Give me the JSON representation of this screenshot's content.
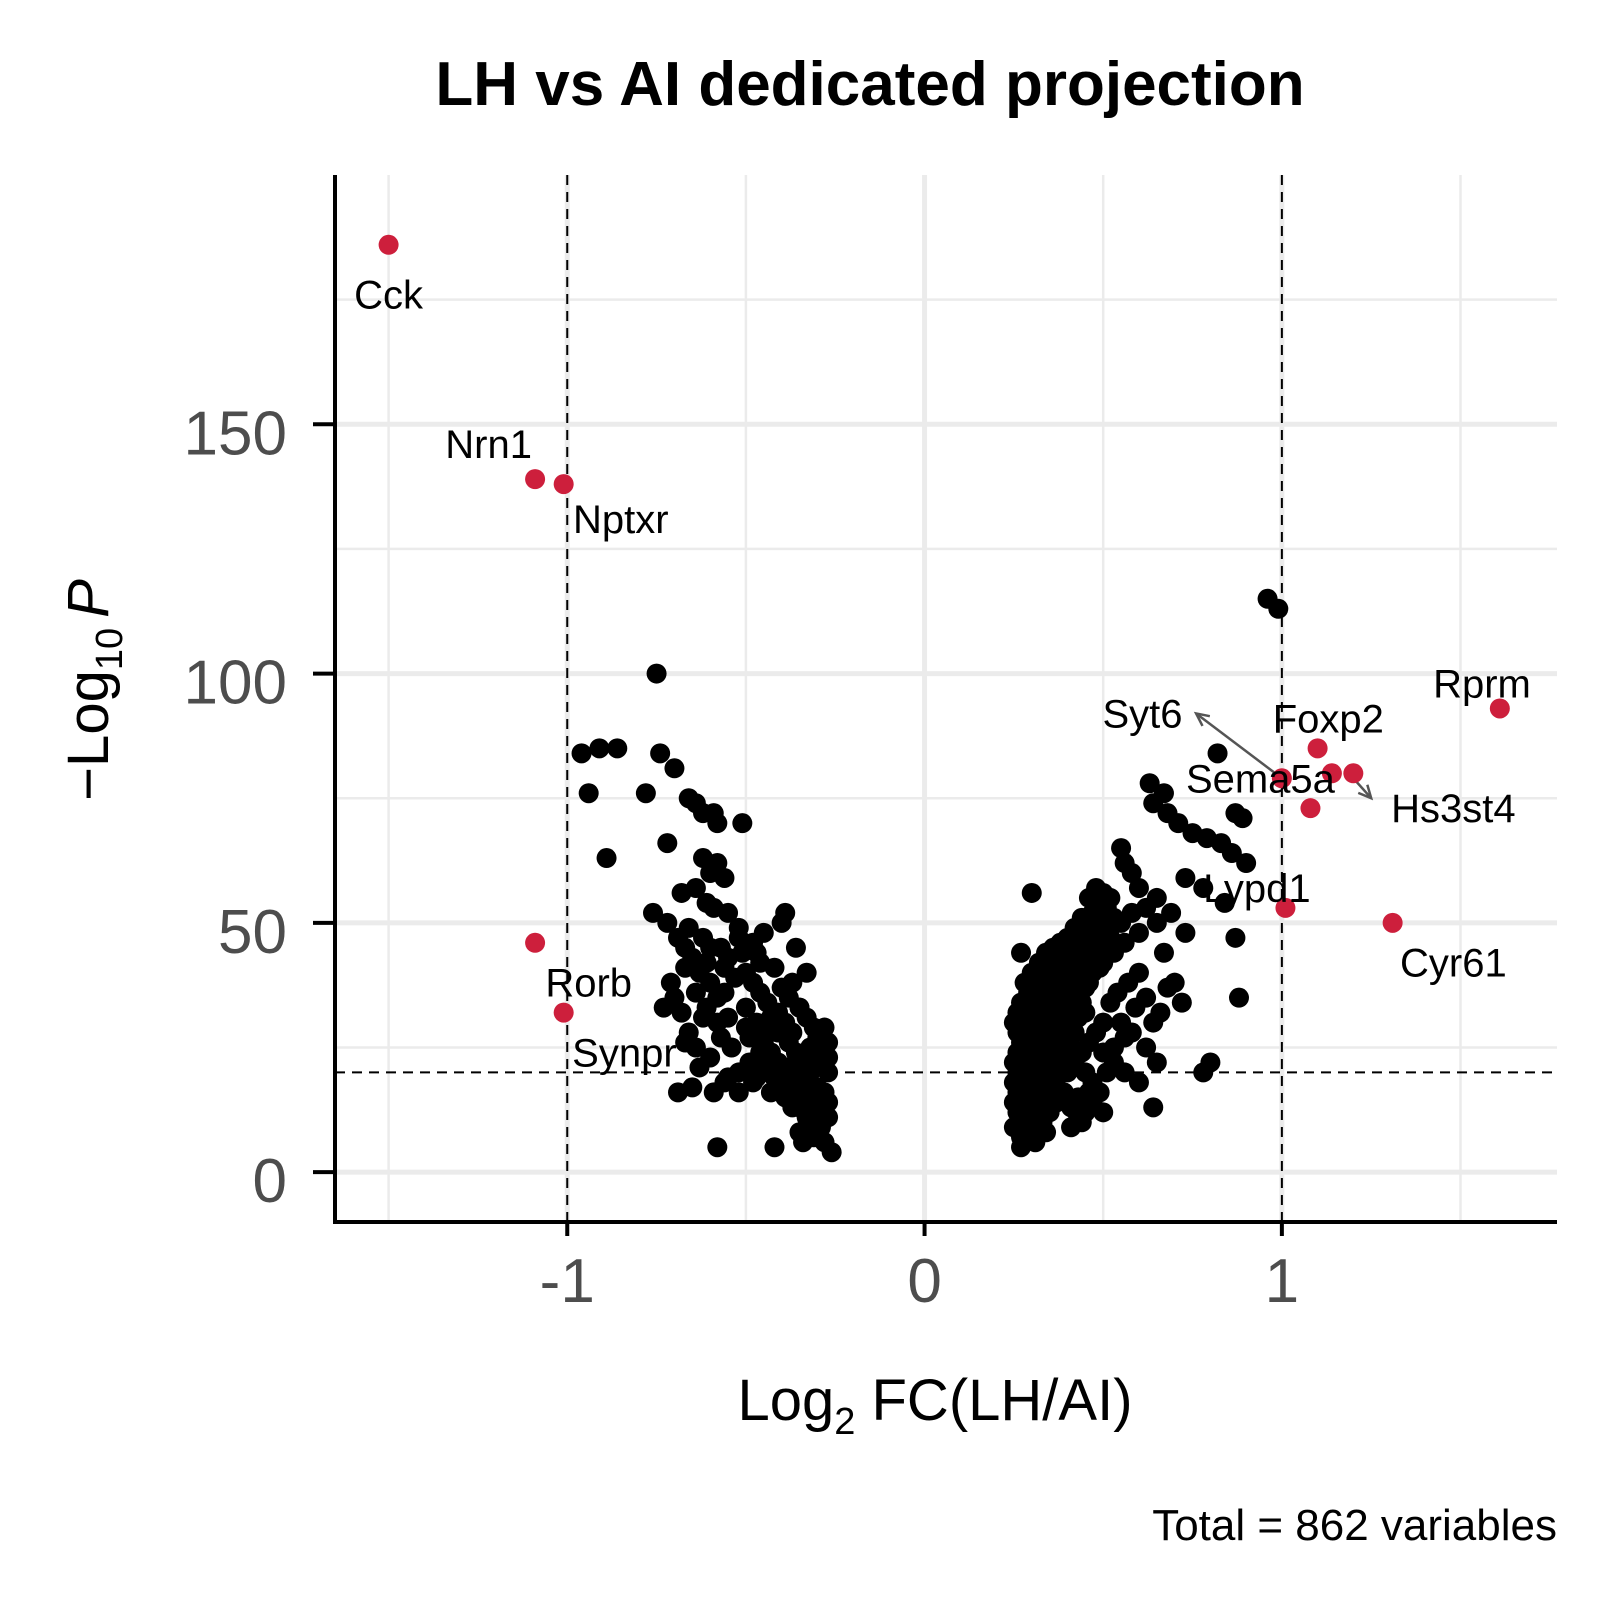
{
  "chart_data": {
    "type": "scatter",
    "title": "LH vs AI dedicated projection",
    "xlabel": {
      "base": "Log",
      "sub": "2",
      "rest": " FC(LH/AI)"
    },
    "ylabel": {
      "prefix": "−Log",
      "sub": "10",
      "italic": "P"
    },
    "caption": "Total = 862 variables",
    "xlim": [
      -1.65,
      1.77
    ],
    "ylim": [
      -10,
      200
    ],
    "x_ticks": [
      -1,
      0,
      1
    ],
    "x_tick_labels": [
      "-1",
      "0",
      "1"
    ],
    "y_ticks": [
      0,
      50,
      100,
      150
    ],
    "y_tick_labels": [
      "0",
      "50",
      "100",
      "150"
    ],
    "cutoffs": {
      "x": [
        -1,
        1
      ],
      "y": 20
    },
    "colors": {
      "significant": "#cd1f3c",
      "other": "#000000",
      "grid": "#ebebeb",
      "connector": "#555555"
    },
    "highlighted": [
      {
        "gene": "Cck",
        "x": -1.5,
        "y": 186,
        "lx": -1.5,
        "ly": 176
      },
      {
        "gene": "Nrn1",
        "x": -1.09,
        "y": 139,
        "lx": -1.22,
        "ly": 146
      },
      {
        "gene": "Nptxr",
        "x": -1.01,
        "y": 138,
        "lx": -0.85,
        "ly": 131
      },
      {
        "gene": "Rorb",
        "x": -1.09,
        "y": 46,
        "lx": -0.94,
        "ly": 38
      },
      {
        "gene": "Synpr",
        "x": -1.01,
        "y": 32,
        "lx": -0.84,
        "ly": 24
      },
      {
        "gene": "Rprm",
        "x": 1.61,
        "y": 93,
        "lx": 1.56,
        "ly": 98
      },
      {
        "gene": "Foxp2",
        "x": 1.1,
        "y": 85,
        "lx": 1.13,
        "ly": 91
      },
      {
        "gene": "Syt6",
        "x": 1.0,
        "y": 79,
        "lx": 0.61,
        "ly": 92
      },
      {
        "gene": "Sema5a",
        "x": 1.14,
        "y": 80,
        "lx": 0.94,
        "ly": 79
      },
      {
        "gene": "Hs3st4",
        "x": 1.2,
        "y": 80,
        "lx": 1.48,
        "ly": 73
      },
      {
        "gene": "Lypd1",
        "x": 1.01,
        "y": 53,
        "lx": 0.93,
        "ly": 57
      },
      {
        "gene": "Cyr61",
        "x": 1.31,
        "y": 50,
        "lx": 1.48,
        "ly": 42
      },
      {
        "gene": "",
        "x": 1.08,
        "y": 73,
        "lx": null,
        "ly": null
      }
    ],
    "connectors": [
      {
        "from": [
          1.0,
          79
        ],
        "to": [
          0.76,
          92
        ]
      },
      {
        "from": [
          1.2,
          79
        ],
        "to": [
          1.25,
          75
        ]
      }
    ],
    "points": [
      [
        -0.75,
        100
      ],
      [
        -0.96,
        84
      ],
      [
        -0.91,
        85
      ],
      [
        -0.86,
        85
      ],
      [
        -0.74,
        84
      ],
      [
        -0.7,
        81
      ],
      [
        -0.94,
        76
      ],
      [
        -0.78,
        76
      ],
      [
        -0.66,
        75
      ],
      [
        -0.64,
        74
      ],
      [
        -0.62,
        72
      ],
      [
        -0.59,
        72
      ],
      [
        -0.58,
        70
      ],
      [
        -0.51,
        70
      ],
      [
        -0.72,
        66
      ],
      [
        -0.62,
        63
      ],
      [
        -0.89,
        63
      ],
      [
        -0.6,
        60
      ],
      [
        -0.56,
        59
      ],
      [
        -0.64,
        57
      ],
      [
        -0.68,
        56
      ],
      [
        -0.61,
        54
      ],
      [
        -0.76,
        52
      ],
      [
        -0.72,
        50
      ],
      [
        -0.66,
        49
      ],
      [
        -0.62,
        47
      ],
      [
        -0.6,
        45
      ],
      [
        -0.55,
        43
      ],
      [
        -0.51,
        44
      ],
      [
        -0.48,
        46
      ],
      [
        -0.46,
        42
      ],
      [
        -0.4,
        50
      ],
      [
        -0.39,
        52
      ],
      [
        -0.36,
        45
      ],
      [
        -0.33,
        40
      ],
      [
        -0.37,
        38
      ],
      [
        -0.35,
        33
      ],
      [
        0.96,
        115
      ],
      [
        0.99,
        113
      ],
      [
        0.82,
        84
      ],
      [
        0.63,
        78
      ],
      [
        0.67,
        76
      ],
      [
        0.64,
        74
      ],
      [
        0.68,
        72
      ],
      [
        0.71,
        70
      ],
      [
        0.87,
        72
      ],
      [
        0.89,
        71
      ],
      [
        0.75,
        68
      ],
      [
        0.79,
        67
      ],
      [
        0.83,
        66
      ],
      [
        0.86,
        64
      ],
      [
        0.9,
        62
      ],
      [
        0.73,
        59
      ],
      [
        0.78,
        57
      ],
      [
        0.84,
        54
      ],
      [
        0.55,
        65
      ],
      [
        0.56,
        62
      ],
      [
        0.58,
        60
      ],
      [
        0.6,
        57
      ],
      [
        0.65,
        55
      ],
      [
        0.69,
        52
      ],
      [
        0.73,
        48
      ],
      [
        0.87,
        47
      ],
      [
        0.7,
        38
      ],
      [
        0.88,
        35
      ],
      [
        0.78,
        20
      ],
      [
        0.8,
        22
      ],
      [
        0.64,
        13
      ],
      [
        0.46,
        16
      ],
      [
        0.44,
        10
      ],
      [
        0.5,
        12
      ],
      [
        0.34,
        8
      ],
      [
        0.31,
        6
      ],
      [
        0.27,
        5
      ],
      [
        -0.58,
        5
      ],
      [
        -0.42,
        5
      ],
      [
        -0.35,
        8
      ],
      [
        -0.34,
        6
      ],
      [
        -0.28,
        6
      ],
      [
        -0.26,
        4
      ],
      [
        -0.31,
        10
      ],
      [
        -0.29,
        12
      ],
      [
        -0.39,
        15
      ],
      [
        -0.43,
        16
      ],
      [
        -0.47,
        19
      ],
      [
        -0.52,
        20
      ],
      [
        -0.56,
        18
      ],
      [
        -0.6,
        23
      ],
      [
        -0.64,
        25
      ],
      [
        -0.66,
        28
      ],
      [
        -0.68,
        32
      ],
      [
        -0.7,
        35
      ],
      [
        -0.62,
        31
      ],
      [
        -0.58,
        30
      ],
      [
        -0.55,
        31
      ],
      [
        -0.5,
        29
      ],
      [
        -0.49,
        27
      ],
      [
        -0.45,
        26
      ],
      [
        -0.43,
        24
      ],
      [
        -0.41,
        22
      ],
      [
        -0.38,
        21
      ],
      [
        -0.36,
        19
      ],
      [
        -0.33,
        18
      ],
      [
        -0.3,
        17
      ],
      [
        -0.28,
        16
      ],
      [
        -0.27,
        20
      ],
      [
        -0.27,
        23
      ],
      [
        -0.27,
        26
      ],
      [
        -0.28,
        29
      ],
      [
        -0.3,
        27
      ],
      [
        -0.32,
        25
      ],
      [
        -0.34,
        23
      ],
      [
        -0.36,
        24
      ],
      [
        -0.37,
        28
      ],
      [
        -0.39,
        30
      ],
      [
        -0.41,
        32
      ],
      [
        -0.44,
        34
      ],
      [
        -0.46,
        36
      ],
      [
        -0.48,
        38
      ],
      [
        -0.5,
        40
      ],
      [
        -0.53,
        39
      ],
      [
        -0.56,
        36
      ],
      [
        -0.58,
        35
      ],
      [
        -0.6,
        38
      ],
      [
        -0.63,
        40
      ],
      [
        -0.65,
        43
      ],
      [
        -0.67,
        45
      ],
      [
        -0.69,
        47
      ],
      [
        -0.57,
        45
      ],
      [
        -0.52,
        47
      ],
      [
        -0.45,
        48
      ],
      [
        -0.42,
        41
      ],
      [
        -0.4,
        37
      ],
      [
        -0.38,
        35
      ],
      [
        -0.35,
        33
      ],
      [
        -0.33,
        31
      ],
      [
        -0.31,
        29
      ],
      [
        -0.29,
        27
      ],
      [
        -0.27,
        14
      ],
      [
        -0.29,
        9
      ],
      [
        -0.31,
        7
      ],
      [
        -0.33,
        11
      ],
      [
        -0.35,
        13
      ],
      [
        -0.37,
        17
      ],
      [
        -0.4,
        20
      ],
      [
        -0.44,
        28
      ],
      [
        -0.47,
        30
      ],
      [
        -0.5,
        33
      ],
      [
        -0.54,
        25
      ],
      [
        -0.57,
        27
      ],
      [
        -0.61,
        33
      ],
      [
        -0.64,
        36
      ],
      [
        -0.67,
        26
      ],
      [
        -0.63,
        21
      ],
      [
        -0.59,
        16
      ],
      [
        -0.55,
        19
      ],
      [
        -0.49,
        22
      ],
      [
        -0.46,
        24
      ],
      [
        -0.42,
        19
      ],
      [
        -0.39,
        17
      ],
      [
        -0.37,
        13
      ],
      [
        -0.34,
        15
      ],
      [
        -0.32,
        20
      ],
      [
        -0.3,
        23
      ],
      [
        -0.28,
        21
      ],
      [
        -0.27,
        11
      ],
      [
        -0.3,
        14
      ],
      [
        -0.33,
        16
      ],
      [
        -0.36,
        22
      ],
      [
        -0.38,
        26
      ],
      [
        -0.41,
        28
      ],
      [
        -0.43,
        31
      ],
      [
        -0.45,
        21
      ],
      [
        -0.48,
        18
      ],
      [
        -0.52,
        16
      ],
      [
        -0.65,
        17
      ],
      [
        -0.69,
        16
      ],
      [
        -0.61,
        42
      ],
      [
        -0.56,
        41
      ],
      [
        -0.59,
        53
      ],
      [
        -0.55,
        52
      ],
      [
        -0.52,
        49
      ],
      [
        -0.47,
        44
      ],
      [
        -0.58,
        62
      ],
      [
        -0.67,
        41
      ],
      [
        -0.71,
        38
      ],
      [
        -0.73,
        33
      ],
      [
        0.27,
        44
      ],
      [
        0.3,
        56
      ],
      [
        0.27,
        34
      ],
      [
        0.26,
        32
      ],
      [
        0.25,
        30
      ],
      [
        0.26,
        28
      ],
      [
        0.27,
        26
      ],
      [
        0.26,
        24
      ],
      [
        0.25,
        22
      ],
      [
        0.26,
        20
      ],
      [
        0.25,
        18
      ],
      [
        0.26,
        16
      ],
      [
        0.25,
        14
      ],
      [
        0.26,
        12
      ],
      [
        0.27,
        10
      ],
      [
        0.25,
        9
      ],
      [
        0.28,
        38
      ],
      [
        0.29,
        36
      ],
      [
        0.28,
        33
      ],
      [
        0.29,
        31
      ],
      [
        0.28,
        29
      ],
      [
        0.29,
        27
      ],
      [
        0.28,
        25
      ],
      [
        0.29,
        23
      ],
      [
        0.28,
        21
      ],
      [
        0.29,
        19
      ],
      [
        0.28,
        17
      ],
      [
        0.29,
        15
      ],
      [
        0.28,
        13
      ],
      [
        0.29,
        11
      ],
      [
        0.3,
        40
      ],
      [
        0.31,
        38
      ],
      [
        0.3,
        35
      ],
      [
        0.31,
        33
      ],
      [
        0.3,
        30
      ],
      [
        0.31,
        28
      ],
      [
        0.3,
        26
      ],
      [
        0.31,
        24
      ],
      [
        0.3,
        22
      ],
      [
        0.31,
        20
      ],
      [
        0.3,
        18
      ],
      [
        0.31,
        16
      ],
      [
        0.3,
        14
      ],
      [
        0.31,
        12
      ],
      [
        0.32,
        42
      ],
      [
        0.33,
        39
      ],
      [
        0.32,
        37
      ],
      [
        0.33,
        34
      ],
      [
        0.32,
        32
      ],
      [
        0.33,
        29
      ],
      [
        0.32,
        27
      ],
      [
        0.33,
        25
      ],
      [
        0.32,
        23
      ],
      [
        0.33,
        21
      ],
      [
        0.32,
        19
      ],
      [
        0.33,
        17
      ],
      [
        0.32,
        15
      ],
      [
        0.34,
        44
      ],
      [
        0.35,
        41
      ],
      [
        0.34,
        38
      ],
      [
        0.35,
        36
      ],
      [
        0.34,
        33
      ],
      [
        0.35,
        31
      ],
      [
        0.34,
        28
      ],
      [
        0.35,
        26
      ],
      [
        0.34,
        24
      ],
      [
        0.35,
        22
      ],
      [
        0.34,
        20
      ],
      [
        0.35,
        18
      ],
      [
        0.34,
        16
      ],
      [
        0.36,
        45
      ],
      [
        0.37,
        42
      ],
      [
        0.36,
        40
      ],
      [
        0.37,
        37
      ],
      [
        0.36,
        35
      ],
      [
        0.37,
        32
      ],
      [
        0.36,
        30
      ],
      [
        0.37,
        27
      ],
      [
        0.36,
        25
      ],
      [
        0.37,
        23
      ],
      [
        0.36,
        21
      ],
      [
        0.37,
        19
      ],
      [
        0.38,
        46
      ],
      [
        0.39,
        43
      ],
      [
        0.38,
        41
      ],
      [
        0.39,
        38
      ],
      [
        0.38,
        36
      ],
      [
        0.39,
        34
      ],
      [
        0.38,
        31
      ],
      [
        0.39,
        29
      ],
      [
        0.38,
        26
      ],
      [
        0.39,
        24
      ],
      [
        0.38,
        22
      ],
      [
        0.4,
        47
      ],
      [
        0.41,
        44
      ],
      [
        0.4,
        42
      ],
      [
        0.41,
        39
      ],
      [
        0.4,
        37
      ],
      [
        0.41,
        35
      ],
      [
        0.4,
        32
      ],
      [
        0.41,
        30
      ],
      [
        0.4,
        27
      ],
      [
        0.41,
        25
      ],
      [
        0.42,
        49
      ],
      [
        0.43,
        46
      ],
      [
        0.42,
        43
      ],
      [
        0.43,
        41
      ],
      [
        0.42,
        38
      ],
      [
        0.43,
        36
      ],
      [
        0.42,
        33
      ],
      [
        0.43,
        31
      ],
      [
        0.42,
        28
      ],
      [
        0.44,
        51
      ],
      [
        0.45,
        48
      ],
      [
        0.44,
        45
      ],
      [
        0.45,
        42
      ],
      [
        0.44,
        40
      ],
      [
        0.45,
        37
      ],
      [
        0.44,
        34
      ],
      [
        0.45,
        32
      ],
      [
        0.46,
        55
      ],
      [
        0.47,
        52
      ],
      [
        0.46,
        49
      ],
      [
        0.47,
        46
      ],
      [
        0.46,
        43
      ],
      [
        0.47,
        40
      ],
      [
        0.46,
        38
      ],
      [
        0.48,
        57
      ],
      [
        0.49,
        54
      ],
      [
        0.48,
        50
      ],
      [
        0.49,
        47
      ],
      [
        0.48,
        44
      ],
      [
        0.49,
        41
      ],
      [
        0.5,
        56
      ],
      [
        0.51,
        53
      ],
      [
        0.5,
        49
      ],
      [
        0.51,
        45
      ],
      [
        0.5,
        42
      ],
      [
        0.52,
        55
      ],
      [
        0.53,
        51
      ],
      [
        0.52,
        47
      ],
      [
        0.53,
        44
      ],
      [
        0.55,
        50
      ],
      [
        0.56,
        46
      ],
      [
        0.58,
        52
      ],
      [
        0.6,
        48
      ],
      [
        0.62,
        53
      ],
      [
        0.65,
        50
      ],
      [
        0.67,
        44
      ],
      [
        0.6,
        40
      ],
      [
        0.57,
        38
      ],
      [
        0.54,
        36
      ],
      [
        0.52,
        34
      ],
      [
        0.5,
        30
      ],
      [
        0.48,
        28
      ],
      [
        0.46,
        26
      ],
      [
        0.44,
        24
      ],
      [
        0.42,
        22
      ],
      [
        0.4,
        20
      ],
      [
        0.55,
        30
      ],
      [
        0.58,
        28
      ],
      [
        0.62,
        25
      ],
      [
        0.65,
        22
      ],
      [
        0.6,
        18
      ],
      [
        0.56,
        20
      ],
      [
        0.53,
        22
      ],
      [
        0.5,
        24
      ],
      [
        0.47,
        18
      ],
      [
        0.45,
        20
      ],
      [
        0.43,
        15
      ],
      [
        0.41,
        13
      ],
      [
        0.39,
        16
      ],
      [
        0.37,
        14
      ],
      [
        0.35,
        12
      ],
      [
        0.33,
        10
      ],
      [
        0.31,
        8
      ],
      [
        0.29,
        9
      ],
      [
        0.27,
        7
      ],
      [
        0.72,
        34
      ],
      [
        0.68,
        37
      ],
      [
        0.66,
        32
      ],
      [
        0.64,
        30
      ],
      [
        0.62,
        35
      ],
      [
        0.59,
        33
      ],
      [
        0.56,
        27
      ],
      [
        0.53,
        25
      ],
      [
        0.51,
        20
      ],
      [
        0.49,
        16
      ],
      [
        0.47,
        14
      ],
      [
        0.45,
        12
      ],
      [
        0.43,
        11
      ],
      [
        0.41,
        9
      ]
    ]
  }
}
